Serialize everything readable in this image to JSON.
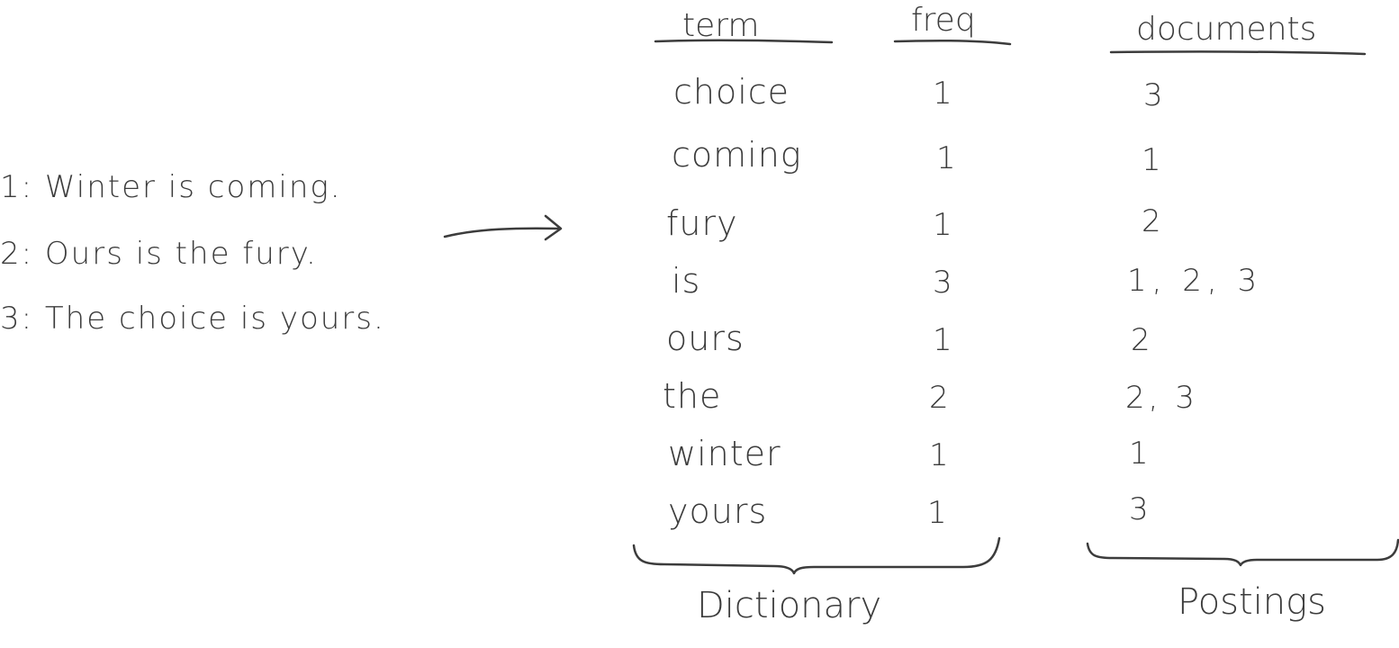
{
  "documents": [
    {
      "id": "1",
      "text": "Winter is coming."
    },
    {
      "id": "2",
      "text": "Ours is the fury."
    },
    {
      "id": "3",
      "text": "The choice is yours."
    }
  ],
  "table": {
    "headers": {
      "term": "term",
      "freq": "freq",
      "documents": "documents"
    },
    "rows": [
      {
        "term": "choice",
        "freq": "1",
        "documents": "3"
      },
      {
        "term": "coming",
        "freq": "1",
        "documents": "1"
      },
      {
        "term": "fury",
        "freq": "1",
        "documents": "2"
      },
      {
        "term": "is",
        "freq": "3",
        "documents": "1, 2, 3"
      },
      {
        "term": "ours",
        "freq": "1",
        "documents": "2"
      },
      {
        "term": "the",
        "freq": "2",
        "documents": "2, 3"
      },
      {
        "term": "winter",
        "freq": "1",
        "documents": "1"
      },
      {
        "term": "yours",
        "freq": "1",
        "documents": "3"
      }
    ]
  },
  "captions": {
    "dictionary": "Dictionary",
    "postings": "Postings"
  }
}
